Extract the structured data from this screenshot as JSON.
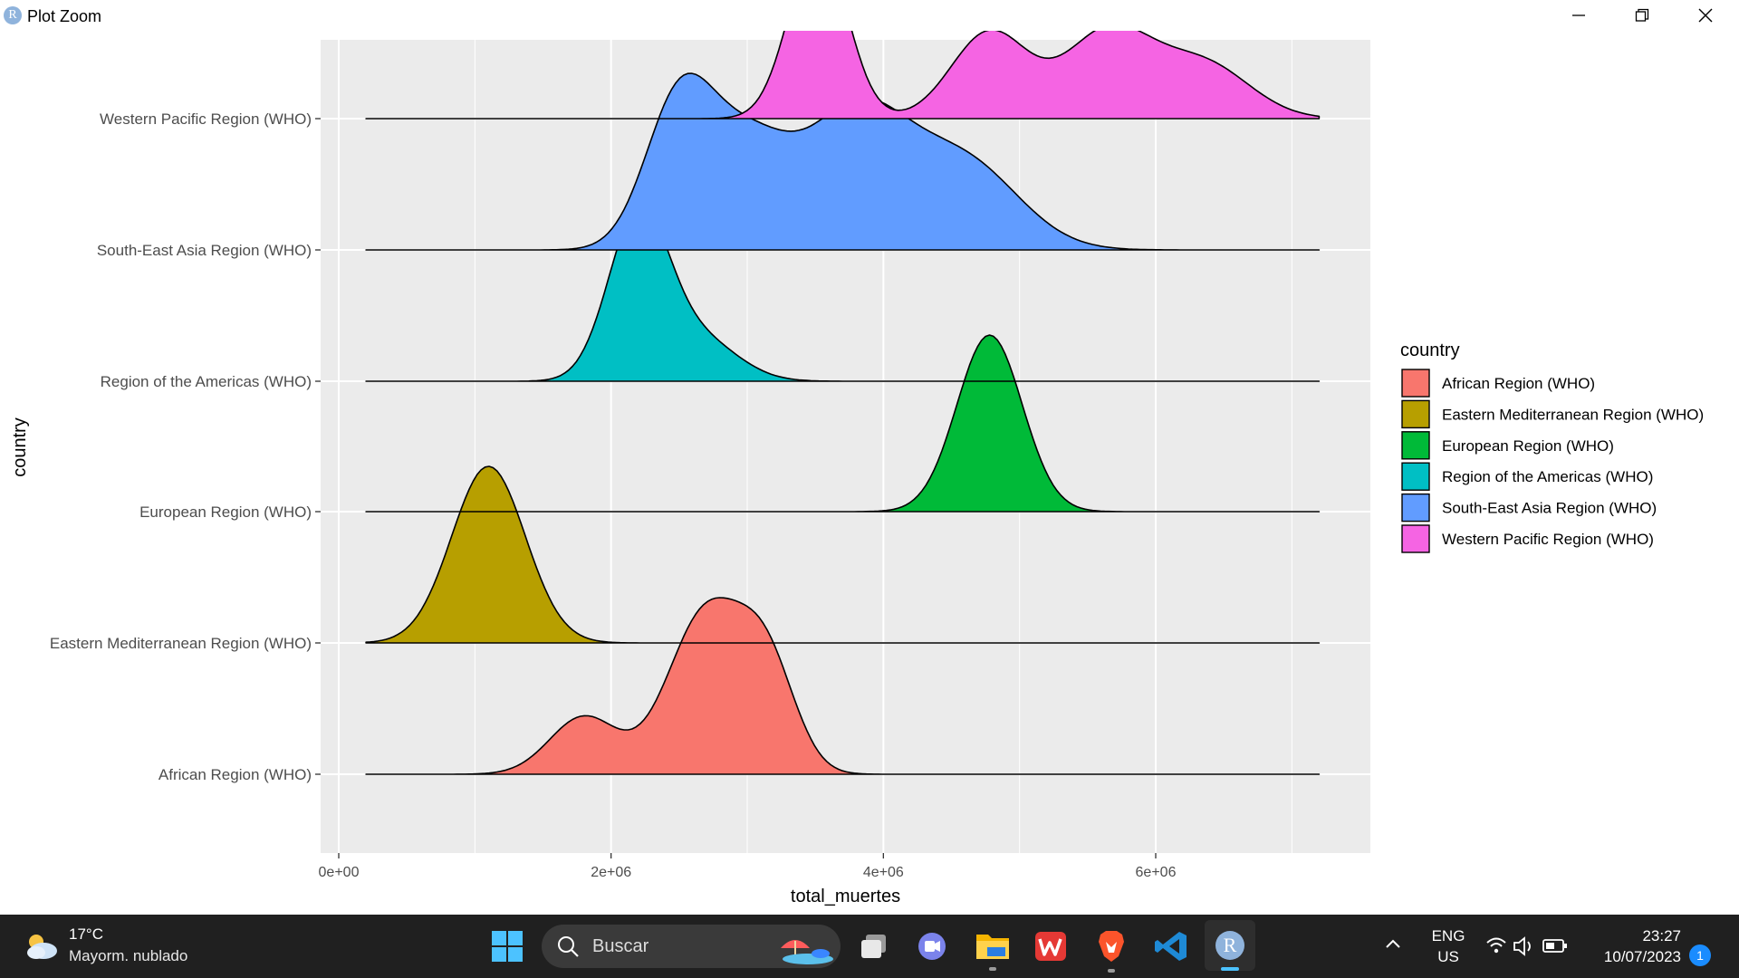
{
  "window": {
    "title": "Plot Zoom",
    "app_icon_letter": "R"
  },
  "chart_data": {
    "type": "ridgeline",
    "xlabel": "total_muertes",
    "ylabel": "country",
    "xlim": [
      -150000,
      7500000
    ],
    "x_ticks": [
      0,
      2000000,
      4000000,
      6000000
    ],
    "x_tick_labels": [
      "0e+00",
      "2e+06",
      "4e+06",
      "6e+06"
    ],
    "x_minor_gridlines": [
      1000000,
      3000000,
      5000000,
      7000000
    ],
    "density_x_range": [
      200000,
      7200000
    ],
    "categories": [
      "African Region (WHO)",
      "Eastern Mediterranean Region (WHO)",
      "European Region (WHO)",
      "Region of the Americas (WHO)",
      "South-East Asia Region (WHO)",
      "Western Pacific Region (WHO)"
    ],
    "legend": {
      "title": "country",
      "position": "right"
    },
    "grid": true,
    "background": "#EBEBEB",
    "series": [
      {
        "name": "African Region (WHO)",
        "color": "#F8766D",
        "components": [
          {
            "mean": 1800000,
            "sd": 250000,
            "weight": 0.32
          },
          {
            "mean": 2700000,
            "sd": 280000,
            "weight": 0.9
          },
          {
            "mean": 3150000,
            "sd": 210000,
            "weight": 0.55
          }
        ]
      },
      {
        "name": "Eastern Mediterranean Region (WHO)",
        "color": "#B79F00",
        "components": [
          {
            "mean": 1100000,
            "sd": 270000,
            "weight": 1.0
          }
        ]
      },
      {
        "name": "European Region (WHO)",
        "color": "#00BA38",
        "components": [
          {
            "mean": 4780000,
            "sd": 240000,
            "weight": 1.0
          }
        ]
      },
      {
        "name": "Region of the Americas (WHO)",
        "color": "#00BFC4",
        "components": [
          {
            "mean": 2200000,
            "sd": 220000,
            "weight": 1.0
          },
          {
            "mean": 2650000,
            "sd": 280000,
            "weight": 0.25
          }
        ]
      },
      {
        "name": "South-East Asia Region (WHO)",
        "color": "#619CFF",
        "components": [
          {
            "mean": 2500000,
            "sd": 250000,
            "weight": 0.62
          },
          {
            "mean": 3000000,
            "sd": 300000,
            "weight": 0.42
          },
          {
            "mean": 3800000,
            "sd": 380000,
            "weight": 0.58
          },
          {
            "mean": 4600000,
            "sd": 400000,
            "weight": 0.36
          }
        ]
      },
      {
        "name": "Western Pacific Region (WHO)",
        "color": "#F564E3",
        "components": [
          {
            "mean": 3520000,
            "sd": 210000,
            "weight": 0.98
          },
          {
            "mean": 4780000,
            "sd": 280000,
            "weight": 0.48
          },
          {
            "mean": 5650000,
            "sd": 320000,
            "weight": 0.48
          },
          {
            "mean": 6350000,
            "sd": 340000,
            "weight": 0.3
          }
        ]
      }
    ]
  },
  "taskbar": {
    "weather_temp": "17°C",
    "weather_desc": "Mayorm. nublado",
    "search_placeholder": "Buscar",
    "r_icon_letter": "R",
    "lang_line1": "ENG",
    "lang_line2": "US",
    "time": "23:27",
    "date": "10/07/2023",
    "notification_count": "1",
    "icons": [
      "windows-start-icon",
      "search-icon",
      "task-view-icon",
      "teams-chat-icon",
      "file-explorer-icon",
      "wps-office-icon",
      "brave-browser-icon",
      "vscode-icon",
      "r-gui-icon"
    ]
  }
}
